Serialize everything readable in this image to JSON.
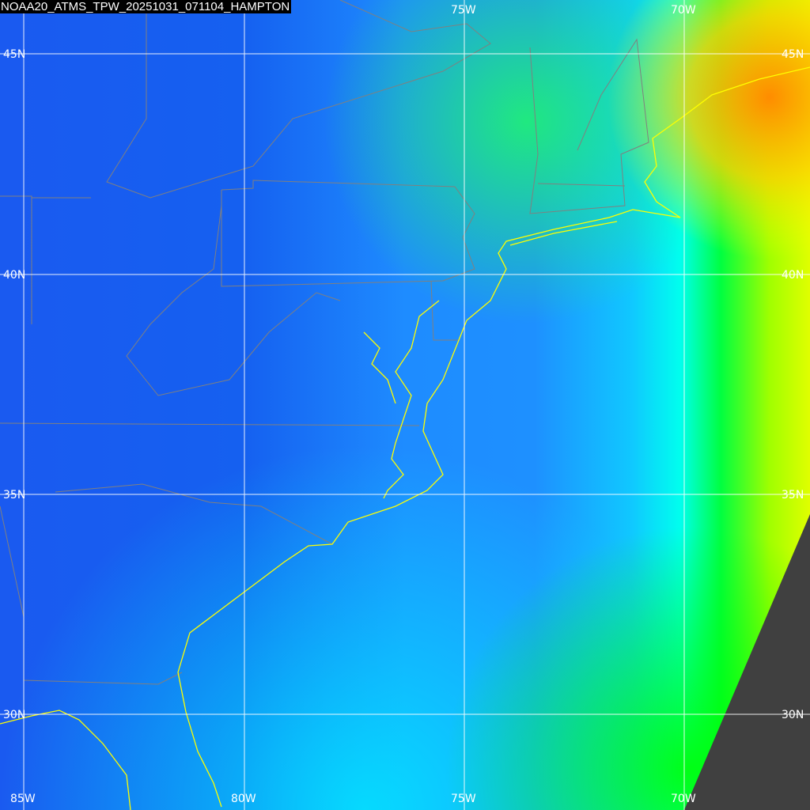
{
  "title": "NOAA20_ATMS_TPW_20251031_071104_HAMPTON",
  "colors": {
    "low": "#0a3ee0",
    "mid": "#1e90ff",
    "cyan": "#00ffff",
    "green": "#00ff00",
    "yellow": "#ffff00",
    "orange": "#ff8c00",
    "no_data": "#404040",
    "coastline": "#ffff00",
    "borders": "#808080",
    "grid": "#ffffff"
  },
  "grid": {
    "longitudes_top": [
      "75W",
      "70W"
    ],
    "longitudes_bottom": [
      "85W",
      "80W",
      "75W",
      "70W"
    ],
    "latitudes_left": [
      "45N",
      "40N",
      "35N",
      "30N"
    ],
    "latitudes_right": [
      "45N",
      "40N",
      "35N",
      "30N"
    ]
  }
}
